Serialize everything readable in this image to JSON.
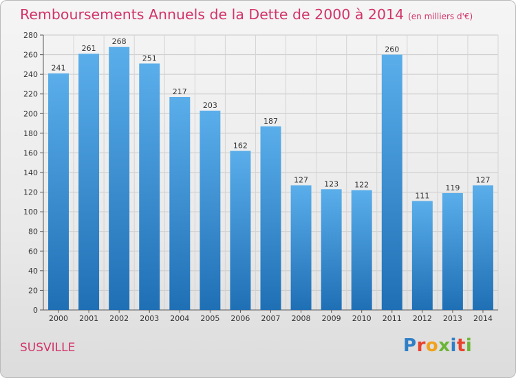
{
  "chart_data": {
    "type": "bar",
    "title": "Remboursements Annuels de la Dette de 2000 à 2014",
    "subtitle": "(en milliers d'€)",
    "categories": [
      "2000",
      "2001",
      "2002",
      "2003",
      "2004",
      "2005",
      "2006",
      "2007",
      "2008",
      "2009",
      "2010",
      "2011",
      "2012",
      "2013",
      "2014"
    ],
    "values": [
      241,
      261,
      268,
      251,
      217,
      203,
      162,
      187,
      127,
      123,
      122,
      260,
      111,
      119,
      127
    ],
    "ylim": [
      0,
      280
    ],
    "yticks": [
      0,
      20,
      40,
      60,
      80,
      100,
      120,
      140,
      160,
      180,
      200,
      220,
      240,
      260,
      280
    ],
    "grid": true,
    "xlabel": "",
    "ylabel": ""
  },
  "location": "SUSVILLE",
  "logo": {
    "letters": [
      "P",
      "r",
      "o",
      "x",
      "i",
      "t",
      "i"
    ],
    "colors": [
      "#2f7fc7",
      "#e8412c",
      "#f1a21b",
      "#6bb536",
      "#2f7fc7",
      "#e8412c",
      "#6bb536"
    ]
  },
  "colors": {
    "bar_light": "#5aaeea",
    "bar_dark": "#1f6fb5",
    "title": "#d2336a"
  }
}
